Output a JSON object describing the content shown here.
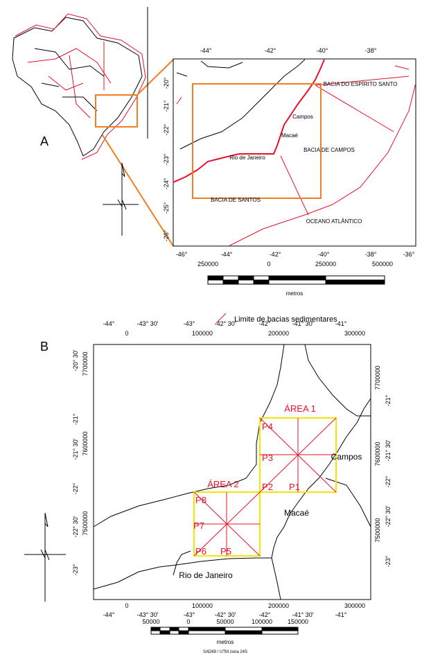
{
  "panel_a": {
    "label": "A",
    "inset": {
      "top_labels": [
        "-44°",
        "-42°",
        "-40°",
        "-38°"
      ],
      "bottom_labels": [
        "-46°",
        "-44°",
        "-42°",
        "-40°",
        "-38°",
        "-36°"
      ],
      "left_labels": [
        "-20°",
        "-21°",
        "-22°",
        "-23°",
        "-24°",
        "-25°",
        "-26°"
      ],
      "places": [
        "BACIA DO ESPÍRITO SANTO",
        "Campos",
        "Macaé",
        "BACIA DE CAMPOS",
        "Rio de Janeiro",
        "BACIA DE SANTOS",
        "OCEANO ATLÂNTICO"
      ]
    },
    "scale_bar": {
      "labels": [
        "250000",
        "0",
        "250000",
        "500000"
      ],
      "unit": "metros"
    },
    "legend": "Limite de bacias sedimentares"
  },
  "panel_b": {
    "label": "B",
    "top_degree_labels": [
      "-44°",
      "-43° 30'",
      "-43°",
      "-42° 30'",
      "-42°",
      "-41° 30'",
      "-41°"
    ],
    "top_utm_labels": [
      "0",
      "100000",
      "200000",
      "300000"
    ],
    "bottom_utm_labels": [
      "0",
      "100000",
      "200000",
      "300000"
    ],
    "bottom_degree_labels": [
      "-44°",
      "-43° 30'",
      "-43°",
      "-42° 30'",
      "-42°",
      "-41° 30'",
      "-41°"
    ],
    "left_degree_labels": [
      "-20° 30'",
      "-21°",
      "-21° 30'",
      "-22°",
      "-22° 30'",
      "-23°"
    ],
    "left_utm_labels": [
      "7700000",
      "7600000",
      "7500000"
    ],
    "right_utm_labels": [
      "7700000",
      "7600000",
      "7500000"
    ],
    "right_degree_labels": [
      "-21°",
      "-21° 30'",
      "-22°",
      "-22° 30'",
      "-23°"
    ],
    "areas": [
      "ÁREA 1",
      "ÁREA 2"
    ],
    "points": [
      "P1",
      "P2",
      "P3",
      "P4",
      "P5",
      "P6",
      "P7",
      "P8"
    ],
    "places": [
      "Campos",
      "Macaé",
      "Rio de Janeiro"
    ],
    "scale_bar": {
      "labels": [
        "50000",
        "0",
        "50000",
        "100000",
        "150000"
      ],
      "unit": "metros",
      "datum": "SAD69 / UTM zona 24S"
    }
  }
}
